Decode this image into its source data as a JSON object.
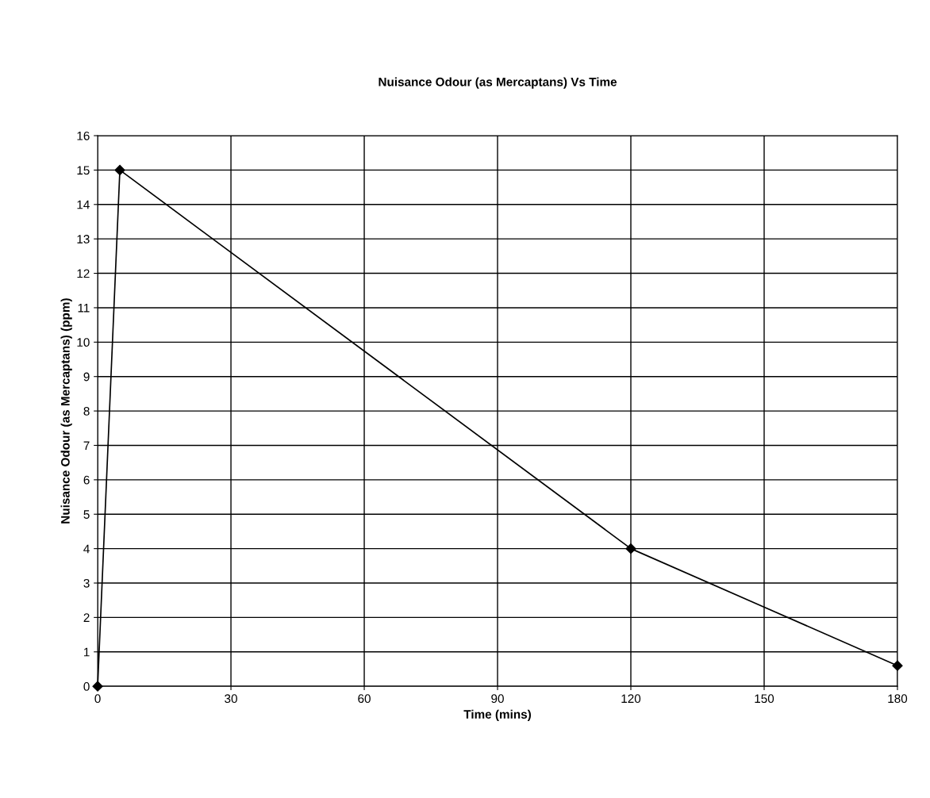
{
  "chart_data": {
    "type": "line",
    "title": "Nuisance Odour (as Mercaptans) Vs Time",
    "xlabel": "Time (mins)",
    "ylabel": "Nuisance Odour (as Mercaptans) (ppm)",
    "x": [
      0,
      5,
      120,
      180
    ],
    "series": [
      {
        "color": "#000000",
        "values": [
          0,
          15,
          4,
          0.6
        ]
      }
    ],
    "xlim": [
      0,
      180
    ],
    "xticks": [
      0,
      30,
      60,
      90,
      120,
      150,
      180
    ],
    "ylim": [
      0,
      16
    ],
    "yticks": [
      0,
      1,
      2,
      3,
      4,
      5,
      6,
      7,
      8,
      9,
      10,
      11,
      12,
      13,
      14,
      15,
      16
    ],
    "grid": true,
    "marker": "diamond",
    "line_style": "solid",
    "legend": false
  }
}
